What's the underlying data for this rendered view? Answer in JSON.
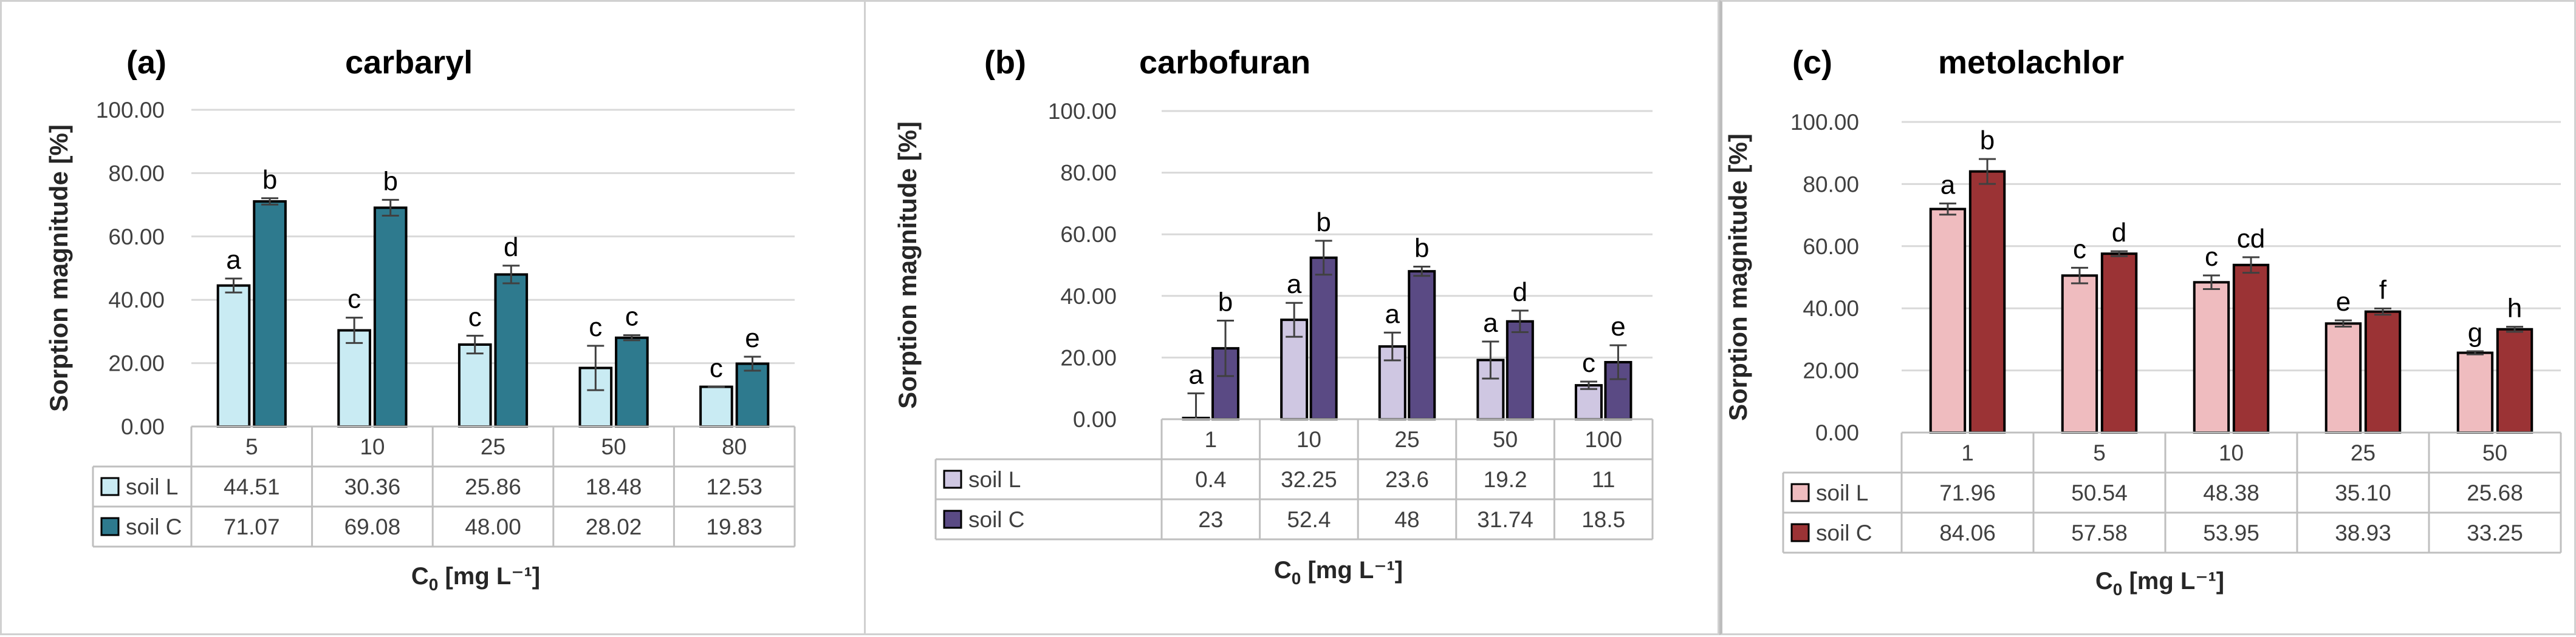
{
  "chart_data": [
    {
      "type": "bar",
      "panel_label": "(a)",
      "title": "carbaryl",
      "ylabel": "Sorption magnitude [%]",
      "xlabel_main": "C",
      "xlabel_sub": "0",
      "xlabel_unit": " [mg L⁻¹]",
      "ylim": [
        0,
        100
      ],
      "yticks": [
        "0.00",
        "20.00",
        "40.00",
        "60.00",
        "80.00",
        "100.00"
      ],
      "categories": [
        "5",
        "10",
        "25",
        "50",
        "80"
      ],
      "series": [
        {
          "name": "soil L",
          "color": "#c9ebf3",
          "values": [
            44.51,
            30.36,
            25.86,
            18.48,
            12.53
          ],
          "display": [
            "44.51",
            "30.36",
            "25.86",
            "18.48",
            "12.53"
          ],
          "errors": [
            2.2,
            4.0,
            2.8,
            7.0,
            0.0
          ],
          "letters": [
            "a",
            "c",
            "c",
            "c",
            "c"
          ]
        },
        {
          "name": "soil C",
          "color": "#2e7a8e",
          "values": [
            71.07,
            69.08,
            48.0,
            28.02,
            19.83
          ],
          "display": [
            "71.07",
            "69.08",
            "48.00",
            "28.02",
            "19.83"
          ],
          "errors": [
            1.0,
            2.5,
            2.8,
            0.8,
            2.2
          ],
          "letters": [
            "b",
            "b",
            "d",
            "c",
            "e"
          ]
        }
      ]
    },
    {
      "type": "bar",
      "panel_label": "(b)",
      "title": "carbofuran",
      "ylabel": "Sorption magnitude [%]",
      "xlabel_main": "C",
      "xlabel_sub": "0",
      "xlabel_unit": " [mg L⁻¹]",
      "ylim": [
        0,
        100
      ],
      "yticks": [
        "0.00",
        "20.00",
        "40.00",
        "60.00",
        "80.00",
        "100.00"
      ],
      "categories": [
        "1",
        "10",
        "25",
        "50",
        "100"
      ],
      "series": [
        {
          "name": "soil L",
          "color": "#cfc7e2",
          "values": [
            0.4,
            32.25,
            23.6,
            19.2,
            11
          ],
          "display": [
            "0.4",
            "32.25",
            "23.6",
            "19.2",
            "11"
          ],
          "errors": [
            8.0,
            5.5,
            4.5,
            6.0,
            1.2
          ],
          "letters": [
            "a",
            "a",
            "a",
            "a",
            "c"
          ]
        },
        {
          "name": "soil C",
          "color": "#5a4a84",
          "values": [
            23,
            52.4,
            48,
            31.74,
            18.5
          ],
          "display": [
            "23",
            "52.4",
            "48",
            "31.74",
            "18.5"
          ],
          "errors": [
            9.0,
            5.5,
            1.5,
            3.5,
            5.5
          ],
          "letters": [
            "b",
            "b",
            "b",
            "d",
            "e"
          ]
        }
      ]
    },
    {
      "type": "bar",
      "panel_label": "(c)",
      "title": "metolachlor",
      "ylabel": "Sorption magnitude [%]",
      "xlabel_main": "C",
      "xlabel_sub": "0",
      "xlabel_unit": " [mg L⁻¹]",
      "ylim": [
        0,
        100
      ],
      "yticks": [
        "0.00",
        "20.00",
        "40.00",
        "60.00",
        "80.00",
        "100.00"
      ],
      "categories": [
        "1",
        "5",
        "10",
        "25",
        "50"
      ],
      "series": [
        {
          "name": "soil L",
          "color": "#efbcbf",
          "values": [
            71.96,
            50.54,
            48.38,
            35.1,
            25.68
          ],
          "display": [
            "71.96",
            "50.54",
            "48.38",
            "35.10",
            "25.68"
          ],
          "errors": [
            1.8,
            2.5,
            2.2,
            1.0,
            0.5
          ],
          "letters": [
            "a",
            "c",
            "c",
            "e",
            "g"
          ]
        },
        {
          "name": "soil C",
          "color": "#9b3335",
          "values": [
            84.06,
            57.58,
            53.95,
            38.93,
            33.25
          ],
          "display": [
            "84.06",
            "57.58",
            "53.95",
            "38.93",
            "33.25"
          ],
          "errors": [
            4.0,
            0.8,
            2.5,
            1.0,
            0.8
          ],
          "letters": [
            "b",
            "d",
            "cd",
            "f",
            "h"
          ]
        }
      ]
    }
  ]
}
